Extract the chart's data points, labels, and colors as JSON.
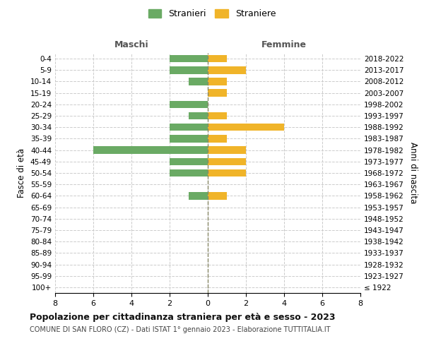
{
  "age_groups": [
    "100+",
    "95-99",
    "90-94",
    "85-89",
    "80-84",
    "75-79",
    "70-74",
    "65-69",
    "60-64",
    "55-59",
    "50-54",
    "45-49",
    "40-44",
    "35-39",
    "30-34",
    "25-29",
    "20-24",
    "15-19",
    "10-14",
    "5-9",
    "0-4"
  ],
  "birth_years": [
    "≤ 1922",
    "1923-1927",
    "1928-1932",
    "1933-1937",
    "1938-1942",
    "1943-1947",
    "1948-1952",
    "1953-1957",
    "1958-1962",
    "1963-1967",
    "1968-1972",
    "1973-1977",
    "1978-1982",
    "1983-1987",
    "1988-1992",
    "1993-1997",
    "1998-2002",
    "2003-2007",
    "2008-2012",
    "2013-2017",
    "2018-2022"
  ],
  "maschi": [
    0,
    0,
    0,
    0,
    0,
    0,
    0,
    0,
    1,
    0,
    2,
    2,
    6,
    2,
    2,
    1,
    2,
    0,
    1,
    2,
    2
  ],
  "femmine": [
    0,
    0,
    0,
    0,
    0,
    0,
    0,
    0,
    1,
    0,
    2,
    2,
    2,
    1,
    4,
    1,
    0,
    1,
    1,
    2,
    1
  ],
  "color_maschi": "#6aaa64",
  "color_femmine": "#f0b429",
  "title": "Popolazione per cittadinanza straniera per età e sesso - 2023",
  "subtitle": "COMUNE DI SAN FLORO (CZ) - Dati ISTAT 1° gennaio 2023 - Elaborazione TUTTITALIA.IT",
  "ylabel_left": "Fasce di età",
  "ylabel_right": "Anni di nascita",
  "xlabel_maschi": "Maschi",
  "xlabel_femmine": "Femmine",
  "legend_maschi": "Stranieri",
  "legend_femmine": "Straniere",
  "xlim": 8,
  "background_color": "#ffffff",
  "grid_color": "#cccccc"
}
